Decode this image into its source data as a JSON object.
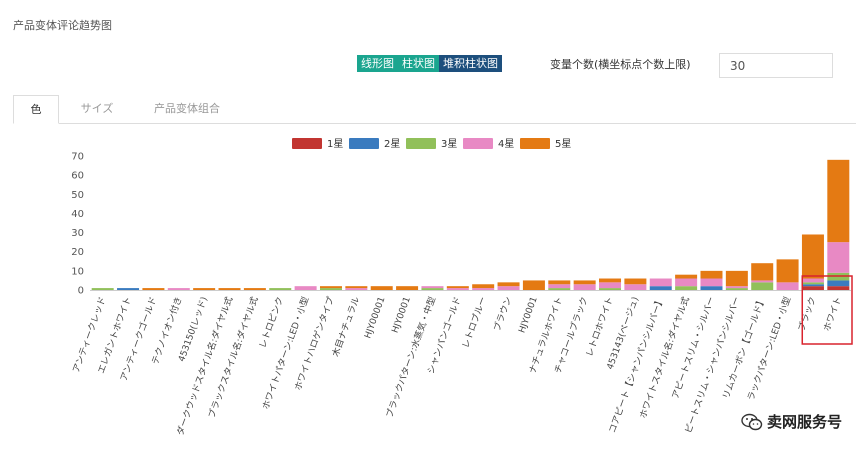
{
  "page_title": "产品变体评论趋势图",
  "chart_type_buttons": [
    "线形图",
    "柱状图",
    "堆积柱状图"
  ],
  "active_chart_type": 2,
  "variable_count": {
    "label": "变量个数(横坐标点个数上限)",
    "value": "30"
  },
  "tabs": [
    {
      "label": "色",
      "active": true
    },
    {
      "label": "サイズ",
      "active": false
    },
    {
      "label": "产品变体组合",
      "active": false
    }
  ],
  "watermark": "卖网服务号",
  "chart_data": {
    "type": "bar",
    "stacked": true,
    "title": "",
    "xlabel": "",
    "ylabel": "",
    "ylim": [
      0,
      70
    ],
    "yticks": [
      0,
      10,
      20,
      30,
      40,
      50,
      60,
      70
    ],
    "legend_position": "top-center",
    "highlight_categories": [
      "ブラック",
      "ホワイト"
    ],
    "categories": [
      "アンティークレッド",
      "エレガントホワイト",
      "アンティークゴールド",
      "テクノイオン付き",
      "453150(レッド)",
      "ダークウッドスタイル名:ダイヤル式",
      "ブラックスタイル名:ダイヤル式",
      "レトロピンク",
      "ホワイトパターン:LED・小型",
      "ホワイトハロゲンタイプ",
      "木目ナチュラル",
      "HJY00001",
      "HJY0001",
      "ブラックパターン:水蒸気・中型",
      "シャンパンゴールド",
      "レトロブルー",
      "ブラウン",
      "HJY0001",
      "ナチュラルホワイト",
      "チャコールブラック",
      "レトロホワイト",
      "453143(ベージュ)",
      "コアピート【シャンパンシルバー】",
      "ホワイトスタイル名:ダイヤル式",
      "アピートスリム・シルバー",
      "ピートスリム・シャンパンシルバー",
      "リムカーボン【ゴールド】",
      "ラックパターン:LED・小型",
      "ブラック",
      "ホワイト"
    ],
    "series": [
      {
        "name": "1星",
        "color": "#c23531",
        "values": [
          0,
          0,
          0,
          0,
          0,
          0,
          0,
          0,
          0,
          0,
          0,
          0,
          0,
          0,
          0,
          0,
          0,
          0,
          0,
          0,
          0,
          0,
          0,
          0,
          0,
          0,
          0,
          0,
          2,
          2
        ]
      },
      {
        "name": "2星",
        "color": "#3a7bbf",
        "values": [
          0,
          1,
          0,
          0,
          0,
          0,
          0,
          0,
          0,
          0,
          0,
          0,
          0,
          0,
          0,
          0,
          0,
          0,
          0,
          0,
          0,
          0,
          2,
          0,
          2,
          0,
          0,
          0,
          1,
          3
        ]
      },
      {
        "name": "3星",
        "color": "#91c05a",
        "values": [
          1,
          0,
          0,
          0,
          0,
          0,
          0,
          1,
          0,
          1,
          0,
          0,
          0,
          1,
          0,
          0,
          0,
          0,
          1,
          0,
          1,
          0,
          0,
          2,
          0,
          1,
          4,
          0,
          1,
          4
        ]
      },
      {
        "name": "4星",
        "color": "#e889c4",
        "values": [
          0,
          0,
          0,
          1,
          0,
          0,
          0,
          0,
          2,
          0,
          1,
          0,
          0,
          1,
          1,
          1,
          2,
          0,
          2,
          3,
          3,
          3,
          4,
          4,
          4,
          1,
          1,
          4,
          2,
          16
        ]
      },
      {
        "name": "5星",
        "color": "#e47a13",
        "values": [
          0,
          0,
          1,
          0,
          1,
          1,
          1,
          0,
          0,
          1,
          1,
          2,
          2,
          0,
          1,
          2,
          2,
          5,
          2,
          2,
          2,
          3,
          0,
          2,
          4,
          8,
          9,
          12,
          23,
          43
        ]
      }
    ]
  }
}
